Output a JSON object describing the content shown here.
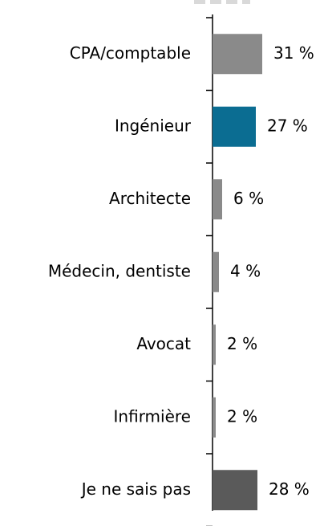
{
  "chart_data": {
    "type": "bar",
    "orientation": "horizontal",
    "categories": [
      "CPA/comptable",
      "Ingénieur",
      "Architecte",
      "Médecin, dentiste",
      "Avocat",
      "Infirmière",
      "Je ne sais pas"
    ],
    "values": [
      31,
      27,
      6,
      4,
      2,
      2,
      28
    ],
    "value_labels": [
      "31 %",
      "27 %",
      "6 %",
      "4 %",
      "2 %",
      "2 %",
      "28 %"
    ],
    "colors": [
      "#8a8a8a",
      "#0b6d92",
      "#8a8a8a",
      "#8a8a8a",
      "#8a8a8a",
      "#8a8a8a",
      "#5a5a5a"
    ]
  }
}
